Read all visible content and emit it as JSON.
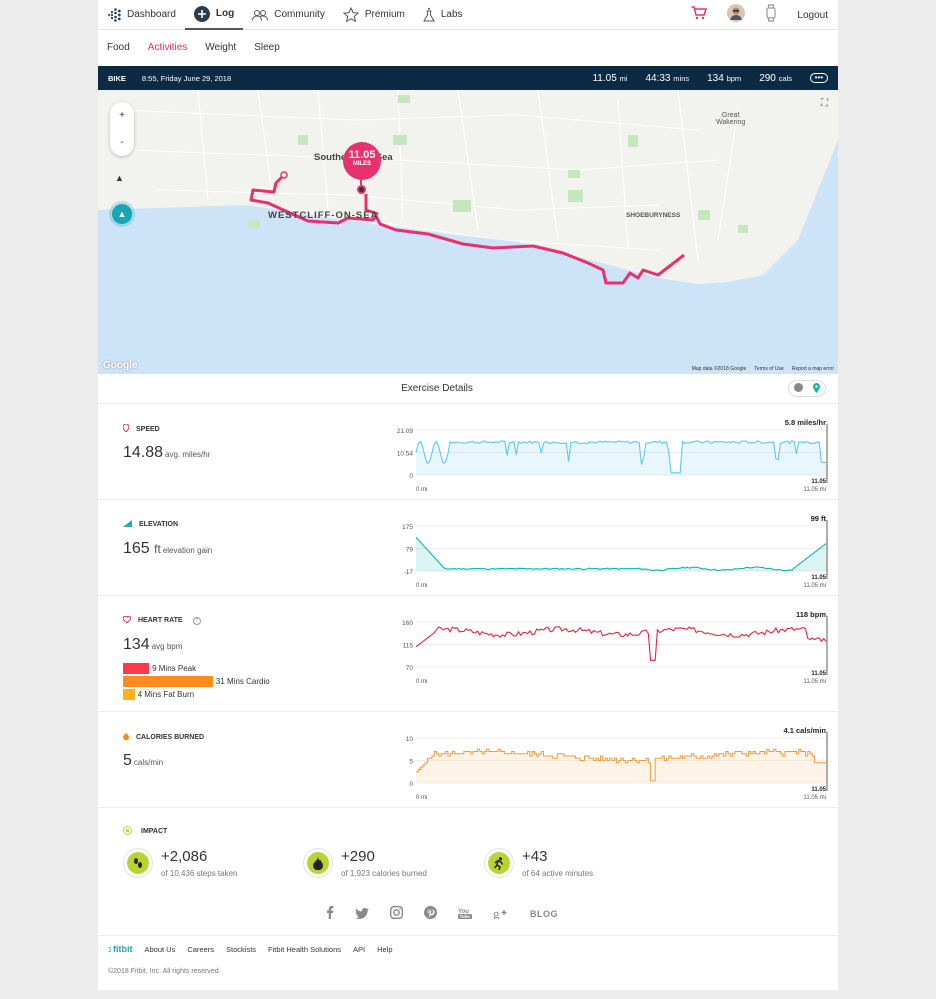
{
  "nav": {
    "items": [
      "Dashboard",
      "Log",
      "Community",
      "Premium",
      "Labs"
    ],
    "logout": "Logout"
  },
  "subnav": {
    "tabs": [
      "Food",
      "Activities",
      "Weight",
      "Sleep"
    ],
    "active": "Activities"
  },
  "activity": {
    "type": "BIKE",
    "datetime": "8:55, Friday June 29, 2018",
    "distance_value": "11.05",
    "distance_unit": "mi",
    "duration_value": "44:33",
    "duration_unit": "mins",
    "hr_value": "134",
    "hr_unit": "bpm",
    "calories_value": "290",
    "calories_unit": "cals"
  },
  "map": {
    "pin_value": "11.05",
    "pin_unit": "MILES",
    "labels": {
      "city": "Southend-on-Sea",
      "westcliff": "WESTCLIFF-ON-SEA",
      "shoeburyness": "SHOEBURYNESS",
      "great_wakering": "Great\nWakering"
    },
    "zoom_in": "+",
    "zoom_out": "-",
    "google": "Google",
    "attribution": [
      "Map data ©2018 Google",
      "Terms of Use",
      "Report a map error"
    ],
    "route_color": "#e8306e"
  },
  "details": {
    "title": "Exercise Details"
  },
  "metrics": {
    "speed": {
      "label": "SPEED",
      "value": "14.88",
      "unit": "avg. miles/hr",
      "current": "5.8 miles/hr",
      "y_ticks": [
        "21.09",
        "10.54",
        "0"
      ],
      "x_start": "0 mi",
      "x_end": "11.05 mi",
      "x_marker": "11.05",
      "color": "#5bc8f0"
    },
    "elevation": {
      "label": "ELEVATION",
      "value": "165",
      "unit_main": "ft",
      "unit": "elevation gain",
      "current": "99 ft",
      "y_ticks": [
        "175",
        "79",
        "-17"
      ],
      "x_start": "0 mi",
      "x_end": "11.05 mi",
      "x_marker": "11.05",
      "color": "#14b3b3"
    },
    "heart_rate": {
      "label": "HEART RATE",
      "value": "134",
      "unit": "avg bpm",
      "current": "118 bpm",
      "y_ticks": [
        "160",
        "115",
        "70"
      ],
      "x_start": "0 mi",
      "x_end": "11.05 mi",
      "x_marker": "11.05",
      "zones": [
        {
          "label": "9 Mins Peak",
          "minutes": 9,
          "color": "#ff3850"
        },
        {
          "label": "31 Mins Cardio",
          "minutes": 31,
          "color": "#ff8c1a"
        },
        {
          "label": "4 Mins Fat Burn",
          "minutes": 4,
          "color": "#ffb21a"
        }
      ],
      "color": "#e8263a"
    },
    "calories": {
      "label": "CALORIES BURNED",
      "value": "5",
      "unit": "cals/min",
      "current": "4.1 cals/min",
      "y_ticks": [
        "10",
        "5",
        "0"
      ],
      "x_start": "0 mi",
      "x_end": "11.05 mi",
      "x_marker": "11.05",
      "color": "#f39a3a"
    }
  },
  "impact": {
    "label": "IMPACT",
    "items": [
      {
        "value": "+2,086",
        "sub": "of 10,436 steps taken"
      },
      {
        "value": "+290",
        "sub": "of 1,923 calories burned"
      },
      {
        "value": "+43",
        "sub": "of 64 active minutes"
      }
    ]
  },
  "social": {
    "items": [
      "f",
      "t",
      "ig",
      "p",
      "yt",
      "g+"
    ],
    "blog": "BLOG"
  },
  "footer": {
    "brand": "fitbit",
    "links": [
      "About Us",
      "Careers",
      "Stockists",
      "Fitbit Health Solutions",
      "API",
      "Help"
    ],
    "copyright": "©2018 Fitbit, Inc. All rights reserved."
  }
}
